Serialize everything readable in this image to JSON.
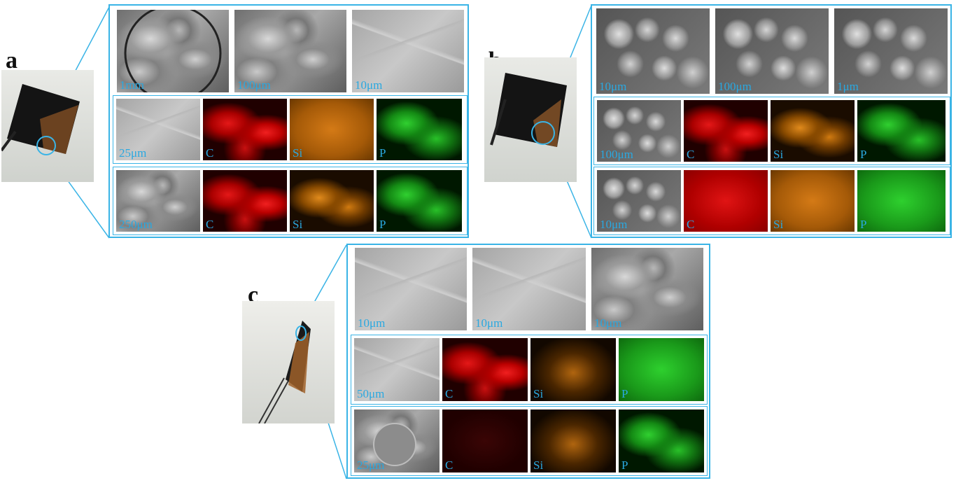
{
  "panels": [
    {
      "letter": "a",
      "sem_row": [
        "1mm",
        "100μm",
        "10μm"
      ],
      "map_rows": [
        [
          "25μm",
          "C",
          "Si",
          "P"
        ],
        [
          "250μm",
          "C",
          "Si",
          "P"
        ]
      ]
    },
    {
      "letter": "b",
      "sem_row": [
        "10μm",
        "100μm",
        "1μm"
      ],
      "map_rows": [
        [
          "100μm",
          "C",
          "Si",
          "P"
        ],
        [
          "10μm",
          "C",
          "Si",
          "P"
        ]
      ]
    },
    {
      "letter": "c",
      "sem_row": [
        "10μm",
        "10μm",
        "10μm"
      ],
      "map_rows": [
        [
          "50μm",
          "C",
          "Si",
          "P"
        ],
        [
          "25μm",
          "C",
          "Si",
          "P"
        ]
      ]
    }
  ],
  "colors": {
    "frame": "#3ab4e6",
    "scale_label": "#2aa8e0",
    "carbon_map": "#e01414",
    "silicon_map": "#d47a16",
    "phosphorus_map": "#2ed02e"
  }
}
